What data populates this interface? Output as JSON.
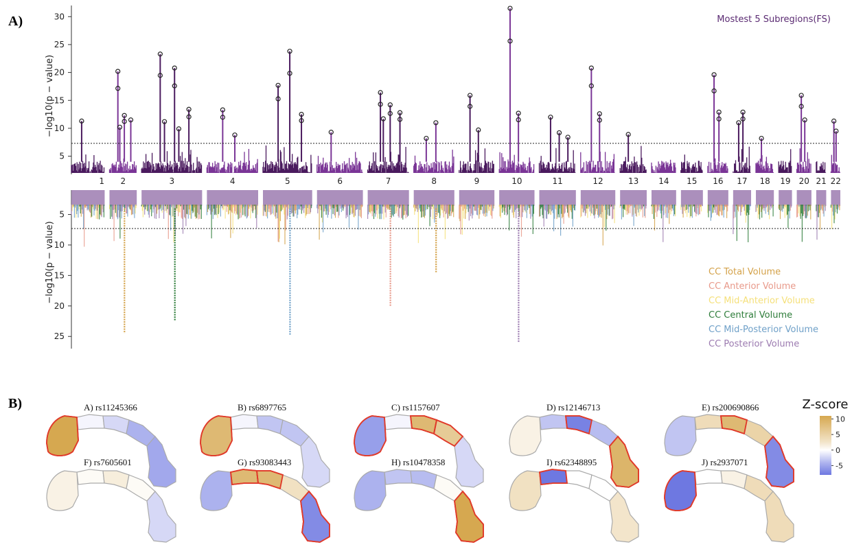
{
  "panel_labels": {
    "a": "A)",
    "b": "B)"
  },
  "chart_data": [
    {
      "type": "scatter",
      "subtype": "manhattan",
      "title": "Mostest 5 Subregions(FS)",
      "ylabel": "−log10(p − value)",
      "ylim": [
        2,
        32
      ],
      "yticks": [
        5,
        10,
        15,
        20,
        25,
        30
      ],
      "threshold": 7.3,
      "chromosomes": [
        "1",
        "2",
        "3",
        "4",
        "5",
        "6",
        "7",
        "8",
        "9",
        "10",
        "11",
        "12",
        "13",
        "14",
        "15",
        "16",
        "17",
        "18",
        "19",
        "20",
        "21",
        "22"
      ],
      "chrom_colors": [
        "#4a1a5e",
        "#7a3596"
      ],
      "top_hits": [
        {
          "chr": "1",
          "peaks": [
            11.3
          ]
        },
        {
          "chr": "2",
          "peaks": [
            20.2,
            12.3,
            11.5,
            10.2
          ]
        },
        {
          "chr": "3",
          "peaks": [
            23.3,
            20.8,
            13.4,
            11.2,
            9.9
          ]
        },
        {
          "chr": "4",
          "peaks": [
            13.3,
            8.8
          ]
        },
        {
          "chr": "5",
          "peaks": [
            17.7,
            23.8,
            12.5
          ]
        },
        {
          "chr": "6",
          "peaks": [
            9.3
          ]
        },
        {
          "chr": "7",
          "peaks": [
            16.4,
            14.2,
            12.8,
            11.7
          ]
        },
        {
          "chr": "8",
          "peaks": [
            8.2,
            11.0
          ]
        },
        {
          "chr": "9",
          "peaks": [
            15.9,
            9.7
          ]
        },
        {
          "chr": "10",
          "peaks": [
            31.5,
            12.7
          ]
        },
        {
          "chr": "11",
          "peaks": [
            12.0,
            9.2,
            8.4
          ]
        },
        {
          "chr": "12",
          "peaks": [
            20.8,
            12.6
          ]
        },
        {
          "chr": "13",
          "peaks": [
            8.9
          ]
        },
        {
          "chr": "16",
          "peaks": [
            19.6,
            12.9
          ]
        },
        {
          "chr": "17",
          "peaks": [
            11.0,
            12.9
          ]
        },
        {
          "chr": "18",
          "peaks": [
            8.2
          ]
        },
        {
          "chr": "20",
          "peaks": [
            15.9,
            11.5
          ]
        },
        {
          "chr": "22",
          "peaks": [
            11.3,
            9.5
          ]
        }
      ]
    },
    {
      "type": "scatter",
      "subtype": "miami-lower",
      "ylabel": "−log10(p − value)",
      "ylim": [
        1,
        27
      ],
      "yticks": [
        5,
        10,
        15,
        20,
        25
      ],
      "threshold": 7.3,
      "series": [
        {
          "name": "CC Total Volume",
          "color": "#d4a24a"
        },
        {
          "name": "CC Anterior Volume",
          "color": "#e8998a"
        },
        {
          "name": "CC Mid-Anterior Volume",
          "color": "#f5e07a"
        },
        {
          "name": "CC Central Volume",
          "color": "#2e7d3a"
        },
        {
          "name": "CC Mid-Posterior Volume",
          "color": "#6fa0c8"
        },
        {
          "name": "CC Posterior Volume",
          "color": "#9c7bb0"
        }
      ],
      "top_hits": [
        {
          "chr": "2",
          "value": 24.5,
          "series": "CC Total Volume"
        },
        {
          "chr": "3",
          "value": 22.5,
          "series": "CC Central Volume"
        },
        {
          "chr": "5",
          "value": 24.8,
          "series": "CC Mid-Posterior Volume"
        },
        {
          "chr": "7",
          "value": 20.0,
          "series": "CC Anterior Volume"
        },
        {
          "chr": "10",
          "value": 26.0,
          "series": "CC Posterior Volume"
        },
        {
          "chr": "8",
          "value": 14.5,
          "series": "CC Total Volume"
        }
      ]
    }
  ],
  "colorbar": {
    "title": "Z-score",
    "ticks": [
      "10",
      "5",
      "0",
      "-5"
    ],
    "range": [
      -8,
      11
    ]
  },
  "brains": [
    {
      "label": "A) rs11245366",
      "z": [
        10.5,
        -0.5,
        -2,
        -4,
        -4.5
      ],
      "hl": [
        true,
        false,
        false,
        false,
        false
      ]
    },
    {
      "label": "B) rs6897765",
      "z": [
        8,
        -0.5,
        -3,
        -3,
        -2
      ],
      "hl": [
        true,
        false,
        false,
        false,
        false
      ]
    },
    {
      "label": "C) rs1157607",
      "z": [
        -5,
        -0.5,
        8,
        6,
        -2
      ],
      "hl": [
        true,
        false,
        true,
        true,
        false
      ]
    },
    {
      "label": "D) rs12146713",
      "z": [
        1.5,
        -3,
        -6.5,
        -3.5,
        8.5
      ],
      "hl": [
        false,
        false,
        true,
        false,
        true
      ]
    },
    {
      "label": "E) rs200690866",
      "z": [
        -3,
        4,
        8,
        5,
        -6
      ],
      "hl": [
        false,
        false,
        true,
        false,
        true
      ]
    },
    {
      "label": "F) rs7605601",
      "z": [
        1.5,
        0.5,
        2,
        0.5,
        -2
      ],
      "hl": [
        false,
        false,
        false,
        false,
        false
      ]
    },
    {
      "label": "G) rs93083443",
      "z": [
        -4,
        8,
        8,
        3.5,
        -6
      ],
      "hl": [
        false,
        true,
        true,
        false,
        true
      ]
    },
    {
      "label": "H) rs10478358",
      "z": [
        -4,
        -3,
        -3.5,
        0.5,
        10
      ],
      "hl": [
        false,
        false,
        false,
        false,
        true
      ]
    },
    {
      "label": "I) rs62348895",
      "z": [
        3.5,
        -7,
        0,
        0,
        3
      ],
      "hl": [
        false,
        true,
        false,
        false,
        false
      ]
    },
    {
      "label": "J) rs2937071",
      "z": [
        -7,
        0,
        1.5,
        4,
        4
      ],
      "hl": [
        true,
        false,
        false,
        false,
        false
      ]
    }
  ]
}
